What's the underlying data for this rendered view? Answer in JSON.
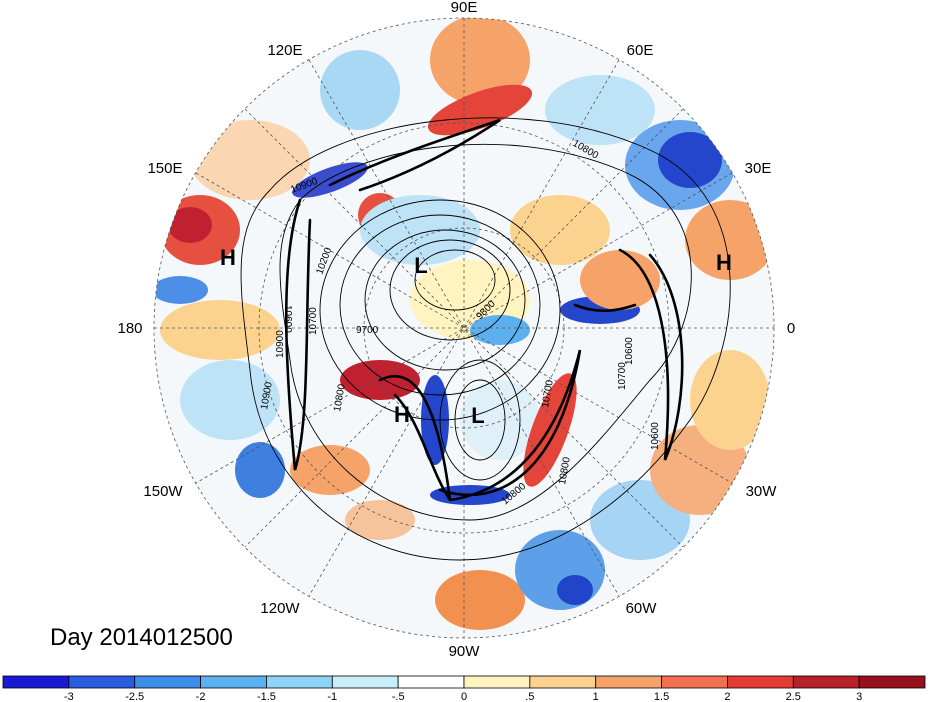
{
  "map": {
    "projection": "north polar stereographic",
    "longitude_labels": {
      "top": "90E",
      "upper_left": "120E",
      "upper_right": "60E",
      "left_upper": "150E",
      "right_upper": "30E",
      "left": "180",
      "right": "0",
      "left_lower": "150W",
      "right_lower": "30W",
      "lower_left": "120W",
      "lower_right": "60W",
      "bottom": "90W"
    },
    "pressure_centers": {
      "h_west": "H",
      "h_east": "H",
      "l_north": "L",
      "h_south": "H",
      "l_south": "L"
    },
    "contour_labels": [
      "10900",
      "10800",
      "10800",
      "10700",
      "10600",
      "10700",
      "9700",
      "9800",
      "10200",
      "10900",
      "10600",
      "10700",
      "10900",
      "10800",
      "10800",
      "10600"
    ],
    "day_label": "Day 2014012500"
  },
  "colorbar": {
    "tick_labels": [
      "-3",
      "-2.5",
      "-2",
      "-1.5",
      "-1",
      "-.5",
      "0",
      ".5",
      "1",
      "1.5",
      "2",
      "2.5",
      "3"
    ],
    "colors": [
      "#1a1ad6",
      "#2a5ce0",
      "#3e8de8",
      "#5cb0f0",
      "#8fd4f6",
      "#c8eefa",
      "#ffffff",
      "#fff4c0",
      "#fbd38e",
      "#f6a36a",
      "#f2704f",
      "#e43d36",
      "#b8202a",
      "#98101e"
    ]
  }
}
